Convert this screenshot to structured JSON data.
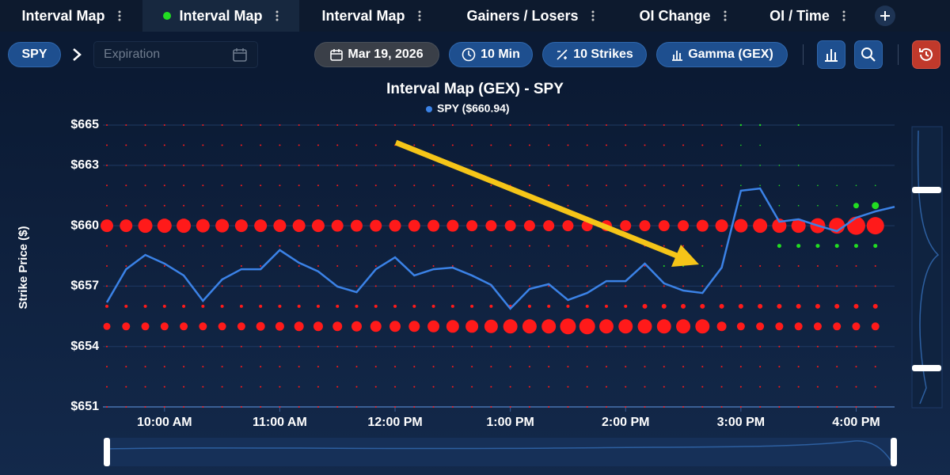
{
  "tabs": [
    {
      "label": "Interval Map"
    },
    {
      "label": "Interval Map",
      "active": true
    },
    {
      "label": "Interval Map"
    },
    {
      "label": "Gainers / Losers"
    },
    {
      "label": "OI Change"
    },
    {
      "label": "OI / Time"
    }
  ],
  "toolbar": {
    "symbol": "SPY",
    "expiration_placeholder": "Expiration",
    "date": "Mar 19, 2026",
    "interval": "10 Min",
    "strikes": "10 Strikes",
    "metric": "Gamma (GEX)"
  },
  "chart_data": {
    "type": "bubble",
    "title": "Interval Map (GEX) - SPY",
    "ylabel": "Strike Price ($)",
    "x": [
      "9:30 AM",
      "9:40 AM",
      "9:50 AM",
      "10:00 AM",
      "10:10 AM",
      "10:20 AM",
      "10:30 AM",
      "10:40 AM",
      "10:50 AM",
      "11:00 AM",
      "11:10 AM",
      "11:20 AM",
      "11:30 AM",
      "11:40 AM",
      "11:50 AM",
      "12:00 PM",
      "12:10 PM",
      "12:20 PM",
      "12:30 PM",
      "12:40 PM",
      "12:50 PM",
      "1:00 PM",
      "1:10 PM",
      "1:20 PM",
      "1:30 PM",
      "1:40 PM",
      "1:50 PM",
      "2:00 PM",
      "2:10 PM",
      "2:20 PM",
      "2:30 PM",
      "2:40 PM",
      "2:50 PM",
      "3:00 PM",
      "3:10 PM",
      "3:20 PM",
      "3:30 PM",
      "3:40 PM",
      "3:50 PM",
      "4:00 PM",
      "4:10 PM",
      "4:20 PM"
    ],
    "xticks": [
      "10:00 AM",
      "11:00 AM",
      "12:00 PM",
      "1:00 PM",
      "2:00 PM",
      "3:00 PM",
      "4:00 PM"
    ],
    "ylim": [
      651,
      665
    ],
    "yticks": [
      {
        "value": 665,
        "label": "$665"
      },
      {
        "value": 663,
        "label": "$663"
      },
      {
        "value": 660,
        "label": "$660"
      },
      {
        "value": 657,
        "label": "$657"
      },
      {
        "value": 654,
        "label": "$654"
      },
      {
        "value": 651,
        "label": "$651"
      }
    ],
    "grid": true,
    "series": [
      {
        "name": "SPY ($660.94)",
        "color": "#3b82e6",
        "values": [
          656.19,
          657.84,
          658.55,
          658.12,
          657.53,
          656.27,
          657.33,
          657.84,
          657.84,
          658.79,
          658.16,
          657.73,
          656.98,
          656.7,
          657.84,
          658.43,
          657.53,
          657.84,
          657.92,
          657.53,
          657.06,
          655.88,
          656.86,
          657.1,
          656.31,
          656.66,
          657.25,
          657.25,
          658.12,
          657.14,
          656.78,
          656.66,
          657.92,
          661.74,
          661.85,
          660.2,
          660.32,
          660.01,
          659.73,
          660.4,
          660.71,
          660.94
        ]
      }
    ],
    "positive_color": "#22dd22",
    "negative_color": "#ff1a1a",
    "strikes": [
      665,
      664,
      663,
      662,
      661,
      660,
      659,
      658,
      657,
      656,
      655,
      654,
      653,
      652,
      651
    ],
    "gex": [
      [
        -1,
        -1,
        -1,
        -1,
        -1,
        -1,
        -1,
        -1,
        -1,
        -1,
        -1,
        -1,
        -1,
        -1,
        -1,
        -1,
        -1,
        -1,
        -1,
        -1,
        -1,
        -1,
        -1,
        -1,
        -1,
        -1,
        -1,
        -1,
        -1,
        -1,
        -1,
        -1,
        -1,
        1.2,
        1.2,
        null,
        1,
        null,
        null,
        null,
        null,
        null
      ],
      [
        -1,
        -1,
        -1,
        -1,
        -1,
        -1,
        -1,
        -1,
        -1,
        -1,
        -1,
        -1,
        -1,
        -1,
        -1,
        -1,
        -1,
        -1,
        -1,
        -1,
        -1,
        -1,
        -1,
        -1,
        -1,
        -1,
        -1,
        -1,
        -1,
        -1,
        -1,
        -1,
        -1,
        0.8,
        0.8,
        null,
        null,
        null,
        null,
        null,
        null,
        null
      ],
      [
        -1,
        -1,
        -1,
        -1,
        -1,
        -1,
        -1,
        -1,
        -1,
        -1,
        -1,
        -1,
        -1,
        -1,
        -1,
        -1,
        -1,
        -1,
        -1,
        -1,
        -1,
        -1,
        -1,
        -1,
        -1,
        -1,
        -1,
        -1,
        -1,
        -1,
        -1,
        -1,
        -1,
        0.8,
        0.8,
        0.8,
        0.8,
        null,
        null,
        null,
        null,
        null
      ],
      [
        -1,
        -1,
        -1,
        -1,
        -1,
        -1,
        -1,
        -1,
        -1,
        -1,
        -1,
        -1,
        -1,
        -1,
        -1,
        -1,
        -1,
        -1,
        -1,
        -1,
        -1,
        -1,
        -1,
        -1,
        -1,
        -1,
        -1,
        -1,
        -1,
        -1,
        -1,
        -1,
        -1,
        0.8,
        0.8,
        0.8,
        0.8,
        0.8,
        0.8,
        0.8,
        0.8,
        null
      ],
      [
        -1,
        -1,
        -1,
        -1,
        -1,
        -1,
        -1,
        -1,
        -1,
        -1,
        -1,
        -1,
        -1,
        -1,
        -1,
        -1,
        -1,
        -1,
        -1,
        -1,
        -1,
        -1,
        -1,
        -1,
        -1,
        -1,
        -1,
        -1,
        -1,
        -1,
        -1,
        -1,
        -1,
        0.8,
        0.8,
        0.8,
        0.8,
        0.8,
        0.8,
        3.5,
        4.5,
        null
      ],
      [
        -8,
        -8,
        -9,
        -9,
        -9,
        -8.5,
        -8.5,
        -8,
        -8,
        -8,
        -8,
        -8,
        -7.5,
        -7.5,
        -7.5,
        -7.5,
        -7.5,
        -7.5,
        -7.5,
        -7,
        -7,
        -7,
        -7,
        -7,
        -7,
        -7,
        -7,
        -7,
        -7,
        -7,
        -7,
        -7.5,
        -8,
        -8.5,
        -9,
        -9,
        -9,
        -9.5,
        -10,
        -11.5,
        -11,
        null
      ],
      [
        -1,
        -1,
        -1,
        -1,
        -1,
        -1,
        -1,
        -1,
        -1,
        -1,
        -1,
        -1,
        -1,
        -1,
        -1,
        -1,
        -1,
        -1,
        -1,
        -1,
        -1,
        -1,
        -1,
        -1,
        -1,
        -1,
        -1,
        -1,
        -1,
        -1,
        -1,
        -1,
        -1,
        null,
        null,
        2.5,
        2.5,
        2.5,
        2.5,
        2.5,
        2.5,
        null
      ],
      [
        -1,
        -1,
        -1,
        -1,
        -1,
        -1,
        -1,
        -1,
        -1,
        -1,
        -1,
        -1,
        -1,
        -1,
        -1,
        -1,
        -1,
        -1,
        -1,
        -1,
        -1,
        -1,
        -1,
        -1,
        -1,
        -1,
        -1,
        -1,
        -1,
        1,
        1,
        1,
        -1,
        -1,
        -1,
        -1,
        -1,
        -1,
        -1,
        -1,
        -1,
        null
      ],
      [
        -1,
        -1,
        -1,
        -1,
        -1,
        -1,
        -1,
        -1,
        -1,
        -1,
        -1,
        -1,
        -1,
        -1,
        -1,
        -1,
        -1,
        -1,
        -1,
        -1,
        -1,
        -1,
        -1,
        -1,
        -1,
        -1,
        -1,
        -1,
        -1,
        -1,
        -1,
        -1,
        -1,
        -1,
        -1,
        -1,
        -1,
        -1,
        -1,
        -1,
        -1,
        null
      ],
      [
        -2,
        -2,
        -2,
        -2,
        -2,
        -2,
        -2,
        -2,
        -2,
        -2,
        -2,
        -2,
        -2,
        -2,
        -2,
        -2,
        -2,
        -2,
        -2,
        -2,
        -2,
        -2,
        -2,
        -2,
        -2,
        -2,
        -2,
        -2,
        -3,
        -3,
        -3,
        -3,
        -3,
        -3,
        -3,
        -3,
        -3,
        -3,
        -3,
        -3,
        -3,
        null
      ],
      [
        -4.5,
        -5,
        -5,
        -5,
        -5,
        -5,
        -5,
        -5,
        -5.5,
        -5.5,
        -6,
        -6,
        -6,
        -6.5,
        -7,
        -7,
        -7,
        -7.5,
        -8,
        -8,
        -8.5,
        -9,
        -9,
        -9,
        -10,
        -10,
        -9,
        -9,
        -9,
        -9,
        -9,
        -9,
        -6,
        -5,
        -5,
        -5,
        -5,
        -5,
        -5,
        -5,
        -5,
        null
      ],
      [
        -1,
        -1,
        -1,
        -1,
        -1,
        -1,
        -1,
        -1,
        -1,
        -1,
        -1,
        -1,
        -1,
        -1,
        -1,
        -1,
        -1,
        -1,
        -1,
        -1,
        -1,
        -1,
        -1,
        -1,
        -1,
        -1,
        -1,
        -1,
        -1,
        -1,
        -1,
        -1,
        -1,
        -1,
        -1,
        -1,
        -1,
        -1,
        -1,
        -1,
        -1,
        null
      ],
      [
        -1,
        -1,
        -1,
        -1,
        -1,
        -1,
        -1,
        -1,
        -1,
        -1,
        -1,
        -1,
        -1,
        -1,
        -1,
        -1,
        -1,
        -1,
        -1,
        -1,
        -1,
        -1,
        -1,
        -1,
        -1,
        -1,
        -1,
        -1,
        -1,
        -1,
        -1,
        -1,
        -1,
        -1,
        -1,
        -1,
        -1,
        -1,
        -1,
        -1,
        -1,
        null
      ],
      [
        -1,
        -1,
        -1,
        -1,
        -1,
        -1,
        -1,
        -1,
        -1,
        -1,
        -1,
        -1,
        -1,
        -1,
        -1,
        -1,
        -1,
        -1,
        -1,
        -1,
        -1,
        -1,
        -1,
        -1,
        -1,
        -1,
        -1,
        -1,
        -1,
        -1,
        -1,
        -1,
        -1,
        -1,
        -1,
        -1,
        -1,
        -1,
        -1,
        -1,
        -1,
        null
      ],
      [
        -1,
        -1,
        -1,
        -1,
        -1,
        -1,
        -1,
        -1,
        -1,
        -1,
        -1,
        -1,
        -1,
        -1,
        -1,
        -1,
        -1,
        -1,
        -1,
        -1,
        -1,
        -1,
        -1,
        -1,
        -1,
        -1,
        -1,
        -1,
        -1,
        -1,
        -1,
        -1,
        -1,
        -1,
        -1,
        -1,
        -1,
        -1,
        -1,
        -1,
        -1,
        null
      ]
    ]
  }
}
